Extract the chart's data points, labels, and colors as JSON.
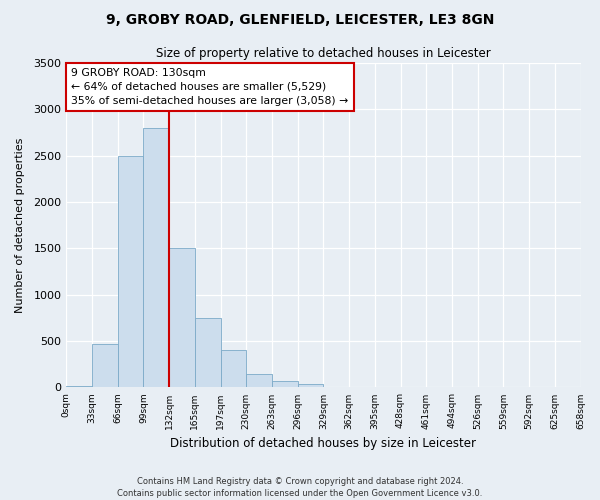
{
  "title": "9, GROBY ROAD, GLENFIELD, LEICESTER, LE3 8GN",
  "subtitle": "Size of property relative to detached houses in Leicester",
  "xlabel": "Distribution of detached houses by size in Leicester",
  "ylabel": "Number of detached properties",
  "bar_color": "#ccdded",
  "bar_edge_color": "#7baac8",
  "background_color": "#e8eef4",
  "bins_labels": [
    "0sqm",
    "33sqm",
    "66sqm",
    "99sqm",
    "132sqm",
    "165sqm",
    "197sqm",
    "230sqm",
    "263sqm",
    "296sqm",
    "329sqm",
    "362sqm",
    "395sqm",
    "428sqm",
    "461sqm",
    "494sqm",
    "526sqm",
    "559sqm",
    "592sqm",
    "625sqm",
    "658sqm"
  ],
  "values": [
    20,
    470,
    2500,
    2800,
    1500,
    750,
    400,
    140,
    70,
    40,
    5,
    0,
    0,
    0,
    0,
    0,
    0,
    0,
    0,
    0
  ],
  "ylim": [
    0,
    3500
  ],
  "yticks": [
    0,
    500,
    1000,
    1500,
    2000,
    2500,
    3000,
    3500
  ],
  "property_line_x": 4,
  "property_line_color": "#cc0000",
  "annotation_title": "9 GROBY ROAD: 130sqm",
  "annotation_line1": "← 64% of detached houses are smaller (5,529)",
  "annotation_line2": "35% of semi-detached houses are larger (3,058) →",
  "annotation_box_color": "#ffffff",
  "annotation_box_edge": "#cc0000",
  "footer1": "Contains HM Land Registry data © Crown copyright and database right 2024.",
  "footer2": "Contains public sector information licensed under the Open Government Licence v3.0."
}
